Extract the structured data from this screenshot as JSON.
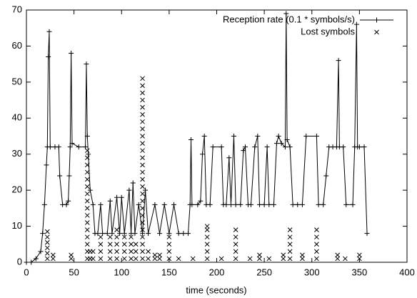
{
  "chart_data": {
    "type": "line",
    "xlabel": "time (seconds)",
    "xlim": [
      0,
      400
    ],
    "xticks": [
      0,
      50,
      100,
      150,
      200,
      250,
      300,
      350,
      400
    ],
    "ylim": [
      0,
      70
    ],
    "yticks": [
      0,
      10,
      20,
      30,
      40,
      50,
      60,
      70
    ],
    "grid": false,
    "legend": "top-right",
    "series": [
      {
        "name": "Reception rate (0.1 * symbols/s)",
        "color": "#000000",
        "style": "linespoints",
        "marker": "+",
        "x": [
          0,
          5,
          10,
          15,
          17,
          19,
          21,
          22,
          23,
          24,
          25,
          30,
          34,
          35,
          38,
          42,
          44,
          45,
          46,
          47,
          48,
          55,
          62,
          63,
          64,
          65,
          67,
          70,
          72,
          75,
          78,
          80,
          85,
          88,
          90,
          95,
          98,
          100,
          103,
          108,
          110,
          112,
          114,
          118,
          122,
          125,
          128,
          135,
          140,
          145,
          150,
          155,
          160,
          165,
          170,
          172,
          173,
          174,
          180,
          183,
          185,
          187,
          189,
          193,
          196,
          205,
          207,
          210,
          213,
          215,
          218,
          220,
          225,
          228,
          230,
          233,
          236,
          240,
          243,
          245,
          250,
          253,
          255,
          260,
          263,
          265,
          268,
          272,
          273,
          274,
          277,
          280,
          285,
          290,
          294,
          305,
          307,
          312,
          315,
          318,
          322,
          326,
          328,
          329,
          333,
          336,
          343,
          345,
          347,
          348,
          350,
          355,
          358
        ],
        "values": [
          0,
          0,
          1,
          3,
          8,
          16,
          27,
          32,
          57,
          64,
          32,
          32,
          32,
          24,
          16,
          16,
          17,
          24,
          32,
          58,
          33,
          32,
          32,
          55,
          35,
          30,
          20,
          16,
          8,
          8,
          16,
          8,
          8,
          17,
          8,
          18,
          8,
          18,
          8,
          20,
          8,
          22,
          8,
          16,
          8,
          20,
          8,
          16,
          8,
          16,
          8,
          16,
          8,
          8,
          8,
          16,
          34,
          16,
          16,
          17,
          30,
          35,
          16,
          16,
          32,
          32,
          16,
          16,
          29,
          16,
          35,
          16,
          16,
          31,
          32,
          16,
          16,
          32,
          35,
          16,
          16,
          32,
          16,
          16,
          33,
          35,
          33,
          32,
          69,
          34,
          32,
          16,
          16,
          16,
          35,
          35,
          16,
          16,
          24,
          32,
          32,
          32,
          56,
          32,
          32,
          16,
          16,
          32,
          66,
          32,
          32,
          32,
          8
        ]
      },
      {
        "name": "Lost symbols",
        "color": "#000000",
        "style": "points",
        "marker": "x",
        "x": [
          22,
          22,
          22,
          22,
          22,
          22,
          28,
          28,
          47,
          47,
          64,
          64,
          64,
          64,
          64,
          64,
          64,
          64,
          64,
          64,
          64,
          64,
          64,
          64,
          64,
          64,
          67,
          67,
          70,
          70,
          78,
          78,
          78,
          78,
          88,
          88,
          88,
          88,
          95,
          95,
          95,
          95,
          95,
          103,
          103,
          103,
          103,
          110,
          110,
          110,
          110,
          115,
          115,
          115,
          122,
          122,
          122,
          122,
          122,
          122,
          122,
          122,
          122,
          122,
          122,
          122,
          122,
          122,
          122,
          122,
          122,
          122,
          122,
          122,
          122,
          122,
          122,
          122,
          122,
          122,
          128,
          128,
          135,
          135,
          140,
          140,
          150,
          150,
          150,
          150,
          160,
          175,
          190,
          190,
          190,
          190,
          190,
          190,
          205,
          220,
          220,
          220,
          220,
          220,
          235,
          245,
          245,
          255,
          270,
          270,
          277,
          277,
          277,
          277,
          277,
          290,
          290,
          305,
          305,
          305,
          305,
          305,
          327,
          327,
          335,
          350,
          350
        ],
        "values": [
          1,
          2.5,
          4,
          5.5,
          7,
          8.5,
          1,
          2,
          1,
          2,
          1,
          3,
          5,
          7,
          9,
          11,
          13,
          15,
          17,
          19,
          21,
          23,
          25,
          27,
          29,
          31,
          1,
          3,
          1,
          3,
          1,
          3,
          5,
          7,
          1,
          3,
          5,
          7,
          1,
          3,
          5,
          7,
          9,
          1,
          3,
          5,
          7,
          1,
          3,
          5,
          7,
          1,
          3,
          5,
          1,
          3,
          5,
          7,
          9,
          11,
          13,
          15,
          17,
          19,
          21,
          23,
          25,
          27,
          29,
          31,
          33,
          35,
          37,
          39,
          41,
          43,
          45,
          47,
          49,
          51,
          1,
          3,
          1,
          2,
          1,
          2,
          1,
          3,
          5,
          7,
          1,
          1,
          1,
          3,
          5,
          7,
          9,
          10,
          1,
          1,
          3,
          5,
          7,
          9,
          1,
          1,
          2,
          1,
          1,
          2,
          1,
          3,
          5,
          7,
          9,
          1,
          2,
          1,
          3,
          5,
          7,
          9,
          1,
          2,
          1,
          1,
          2
        ]
      }
    ]
  }
}
